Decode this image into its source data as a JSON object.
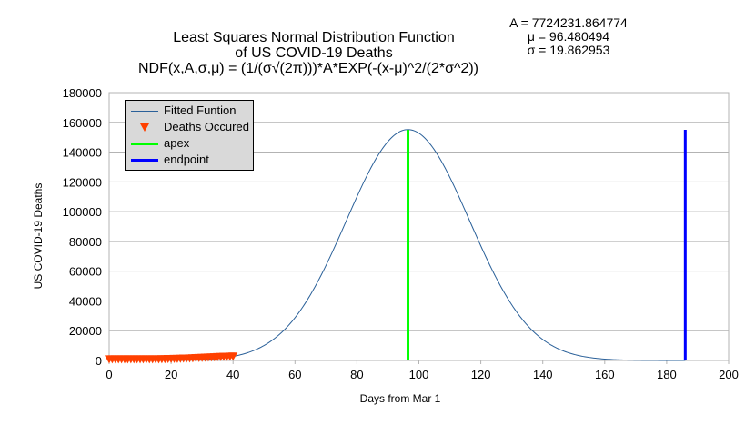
{
  "title": {
    "line1": "Least Squares Normal Distribution Function",
    "line2": "of US COVID-19 Deaths",
    "line3": "NDF(x,A,σ,μ) = (1/(σ√(2π)))*A*EXP(-(x-μ)^2/(2*σ^2))"
  },
  "params": {
    "A": "A = 7724231.864774",
    "mu": "μ = 96.480494",
    "sigma": "σ = 19.862953"
  },
  "colors": {
    "fitted": "#2a6099",
    "deaths": "#ff4000",
    "apex": "#00ff00",
    "endpoint": "#0000ff",
    "grid": "#b3b3b3"
  },
  "chart_data": {
    "type": "line",
    "xlabel": "Days from Mar 1",
    "ylabel": "US COVID-19 Deaths",
    "xlim": [
      0,
      200
    ],
    "ylim": [
      0,
      180000
    ],
    "x_ticks": [
      0,
      20,
      40,
      60,
      80,
      100,
      120,
      140,
      160,
      180,
      200
    ],
    "y_ticks": [
      0,
      20000,
      40000,
      60000,
      80000,
      100000,
      120000,
      140000,
      160000,
      180000
    ],
    "grid": true,
    "legend_position": "top-left",
    "fit": {
      "A": 7724231.864774,
      "mu": 96.480494,
      "sigma": 19.862953,
      "x_range": [
        0,
        186
      ]
    },
    "series": [
      {
        "name": "Fitted Funtion",
        "kind": "line"
      },
      {
        "name": "Deaths Occured",
        "kind": "markers",
        "x": [
          0,
          1,
          2,
          3,
          4,
          5,
          6,
          7,
          8,
          9,
          10,
          11,
          12,
          13,
          14,
          15,
          16,
          17,
          18,
          19,
          20,
          21,
          22,
          23,
          24,
          25,
          26,
          27,
          28,
          29,
          30,
          31,
          32,
          33,
          34,
          35,
          36,
          37,
          38,
          39,
          40
        ],
        "y": [
          1000,
          1000,
          1000,
          1000,
          1000,
          1000,
          1000,
          1000,
          1000,
          1000,
          1000,
          1000,
          1000,
          1000,
          1000,
          1000,
          1000,
          1100,
          1100,
          1200,
          1200,
          1300,
          1300,
          1400,
          1500,
          1500,
          1600,
          1700,
          1800,
          1900,
          2000,
          2100,
          2200,
          2300,
          2400,
          2500,
          2600,
          2700,
          2700,
          2800,
          2900
        ]
      },
      {
        "name": "apex",
        "kind": "vline",
        "x": 96.48,
        "y_range": [
          0,
          155000
        ]
      },
      {
        "name": "endpoint",
        "kind": "vline",
        "x": 186,
        "y_range": [
          0,
          155000
        ]
      }
    ]
  }
}
